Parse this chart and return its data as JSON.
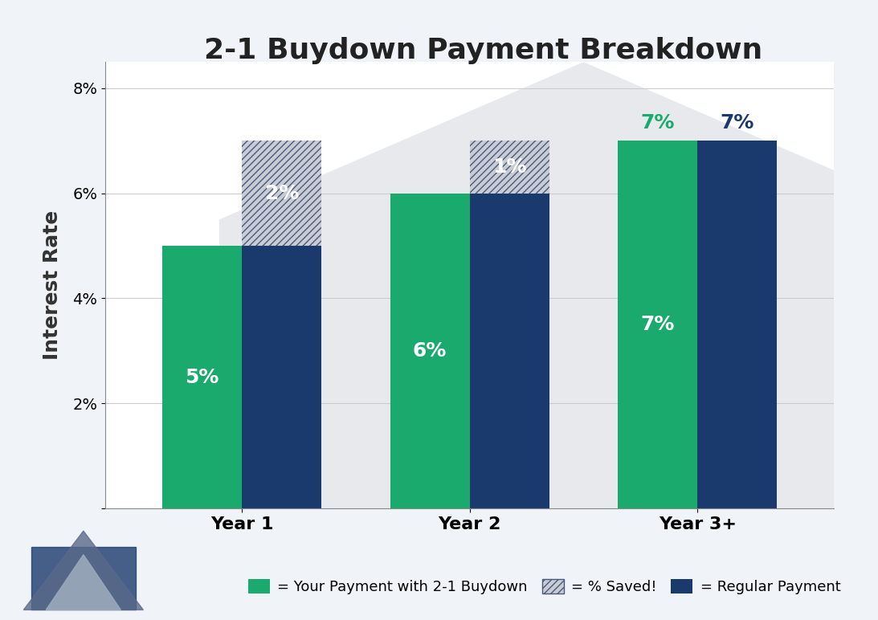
{
  "title": "2-1 Buydown Payment Breakdown",
  "ylabel": "Interest Rate",
  "categories": [
    "Year 1",
    "Year 2",
    "Year 3+"
  ],
  "green_values": [
    5,
    6,
    7
  ],
  "hatch_values": [
    2,
    1,
    0
  ],
  "blue_values": [
    7,
    7,
    7
  ],
  "green_labels": [
    "5%",
    "6%",
    "7%"
  ],
  "hatch_labels": [
    "2%",
    "1%",
    ""
  ],
  "blue_top_labels": [
    "",
    "",
    "7%"
  ],
  "green_color": "#1aaa6e",
  "blue_color": "#1a3a6e",
  "hatch_color_face": "#cccccc",
  "hatch_color_edge": "#1a3a6e",
  "background_color": "#ffffff",
  "ylim": [
    0,
    8.5
  ],
  "yticks": [
    0,
    2,
    4,
    6,
    8
  ],
  "ytick_labels": [
    "",
    "2%",
    "4%",
    "6%",
    "8%"
  ],
  "bar_width": 0.35,
  "title_fontsize": 26,
  "axis_label_fontsize": 18,
  "tick_fontsize": 14,
  "legend_fontsize": 13,
  "bar_label_fontsize": 18,
  "legend_items": [
    "= Your Payment with 2-1 Buydown",
    "= % Saved!",
    "= Regular Payment"
  ],
  "house_color": "#d8d8d8",
  "fig_bg": "#f0f0f0"
}
